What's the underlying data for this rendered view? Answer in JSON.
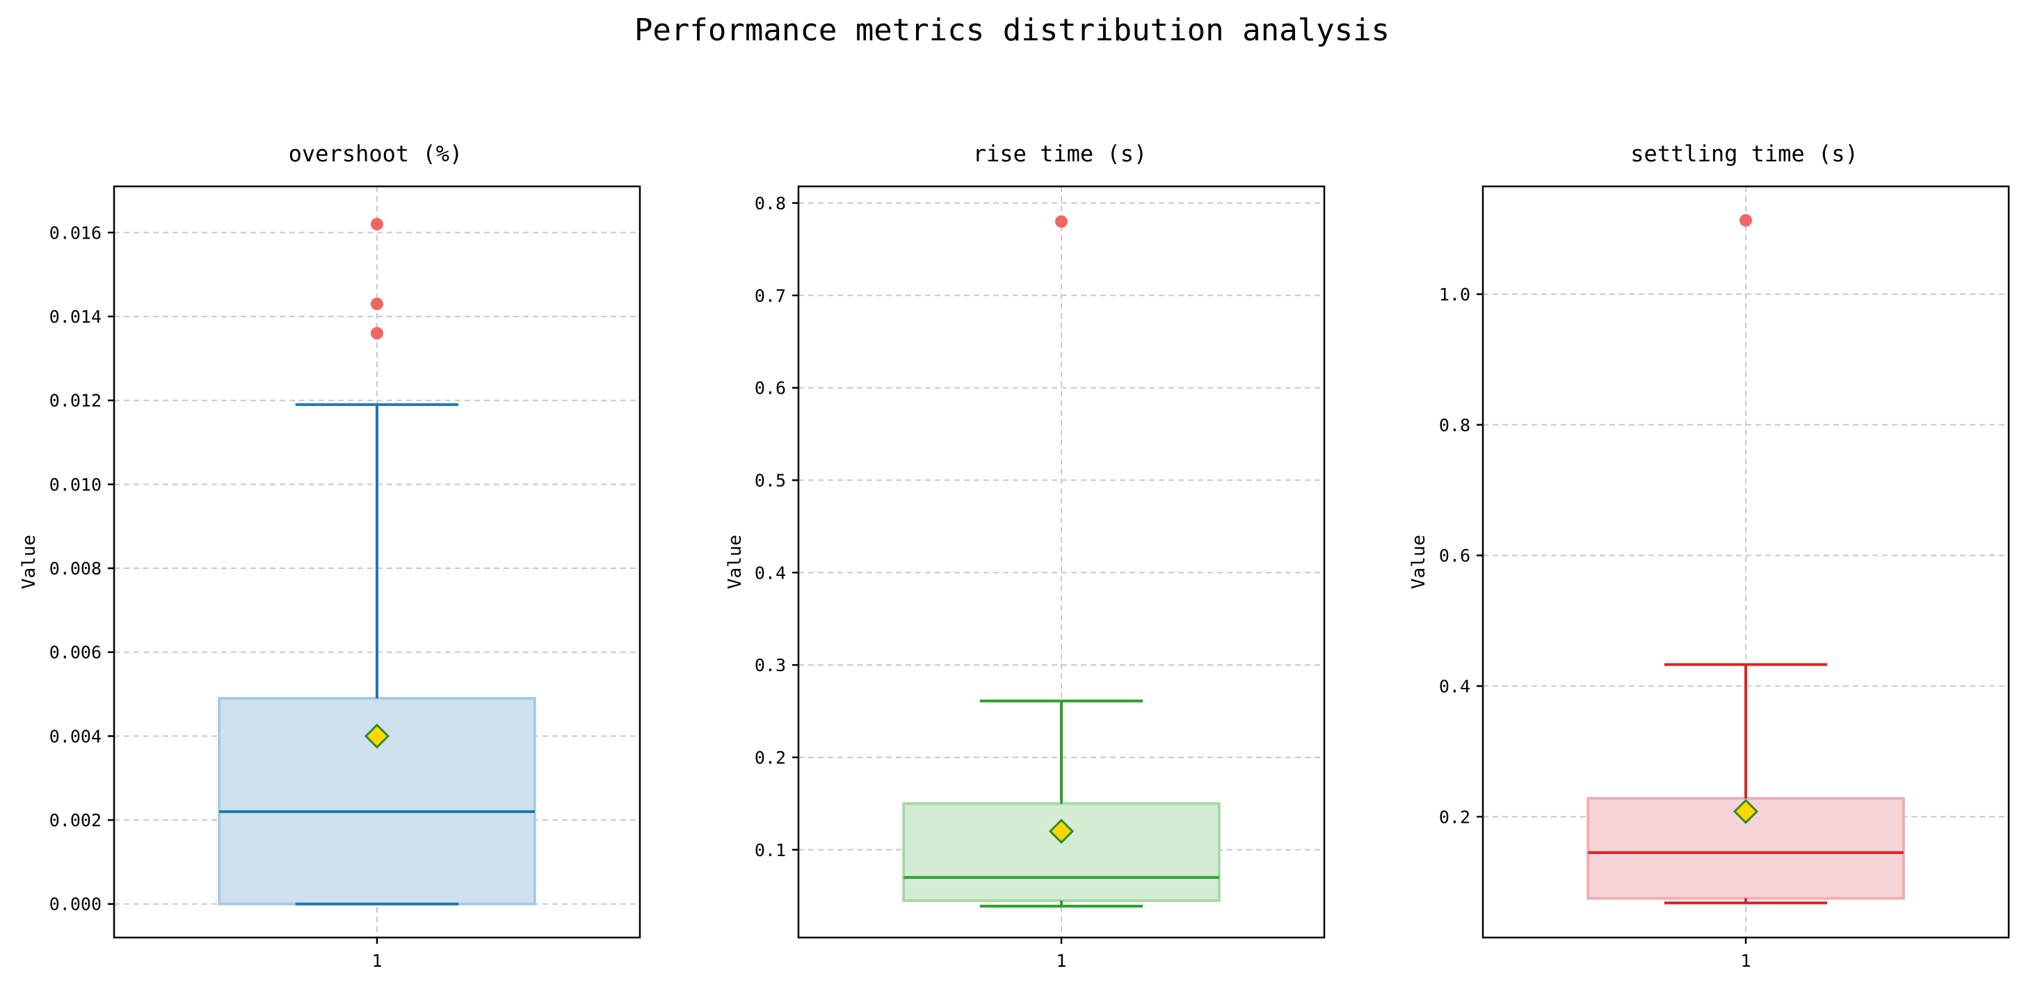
{
  "figure": {
    "title": "Performance metrics distribution analysis"
  },
  "style": {
    "grid_color": "#c8c8c8",
    "outlier_color": "#f16565",
    "mean_marker_fill": "#ffd700",
    "mean_marker_edge": "#2e8b2e",
    "axes_edge": "#000000"
  },
  "chart_data": [
    {
      "type": "box",
      "title": "overshoot (%)",
      "ylabel": "Value",
      "xticks": [
        "1"
      ],
      "ylim": [
        -0.0008,
        0.0171
      ],
      "yticks": [
        0.0,
        0.002,
        0.004,
        0.006,
        0.008,
        0.01,
        0.012,
        0.014,
        0.016
      ],
      "ytick_labels": [
        "0.000",
        "0.002",
        "0.004",
        "0.006",
        "0.008",
        "0.010",
        "0.012",
        "0.014",
        "0.016"
      ],
      "grid": true,
      "colors": {
        "line": "#1f77b4",
        "fill": "#cfe0ee",
        "fill_edge": "#a9c9e2"
      },
      "box": {
        "whisker_low": 0.0,
        "q1": 0.0,
        "median": 0.0022,
        "q3": 0.0049,
        "whisker_high": 0.0119,
        "mean": 0.004
      },
      "outliers": [
        0.0136,
        0.0143,
        0.0162
      ]
    },
    {
      "type": "box",
      "title": "rise time (s)",
      "ylabel": "Value",
      "xticks": [
        "1"
      ],
      "ylim": [
        0.005,
        0.818
      ],
      "yticks": [
        0.1,
        0.2,
        0.3,
        0.4,
        0.5,
        0.6,
        0.7,
        0.8
      ],
      "ytick_labels": [
        "0.1",
        "0.2",
        "0.3",
        "0.4",
        "0.5",
        "0.6",
        "0.7",
        "0.8"
      ],
      "grid": true,
      "colors": {
        "line": "#2ca02c",
        "fill": "#d4ecd4",
        "fill_edge": "#a7d8a7"
      },
      "box": {
        "whisker_low": 0.039,
        "q1": 0.045,
        "median": 0.07,
        "q3": 0.15,
        "whisker_high": 0.261,
        "mean": 0.12
      },
      "outliers": [
        0.78
      ]
    },
    {
      "type": "box",
      "title": "settling time (s)",
      "ylabel": "Value",
      "xticks": [
        "1"
      ],
      "ylim": [
        0.015,
        1.165
      ],
      "yticks": [
        0.2,
        0.4,
        0.6,
        0.8,
        1.0
      ],
      "ytick_labels": [
        "0.2",
        "0.4",
        "0.6",
        "0.8",
        "1.0"
      ],
      "grid": true,
      "colors": {
        "line": "#d62728",
        "fill": "#f5d3d6",
        "fill_edge": "#f0aeb3"
      },
      "box": {
        "whisker_low": 0.068,
        "q1": 0.075,
        "median": 0.145,
        "q3": 0.228,
        "whisker_high": 0.433,
        "mean": 0.208
      },
      "outliers": [
        1.113
      ]
    }
  ]
}
